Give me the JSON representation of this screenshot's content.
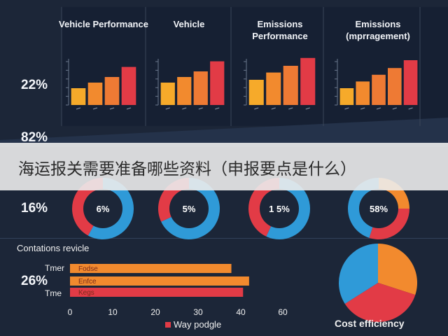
{
  "overlay_title": "海运报关需要准备哪些资料（申报要点是什么）",
  "colors": {
    "background": "#1c2638",
    "yellow": "#f6aa2a",
    "orange": "#f28a2e",
    "orange2": "#ee7a34",
    "red": "#e23b46",
    "blue": "#2f9ad8",
    "grid": "#3a4658"
  },
  "side_percentages": [
    "22%",
    "82%",
    "16%",
    "26%"
  ],
  "chart_data": [
    {
      "type": "bar",
      "title": "Vehicle Performance",
      "values": [
        3,
        4,
        5,
        6.8
      ],
      "colors": [
        "yellow",
        "orange",
        "orange2",
        "red"
      ]
    },
    {
      "type": "bar",
      "title": "Vehicle",
      "values": [
        4,
        5,
        6,
        7.8
      ],
      "colors": [
        "yellow",
        "orange",
        "orange2",
        "red"
      ]
    },
    {
      "type": "bar",
      "title": "Emissions Performance",
      "values": [
        4.5,
        5.8,
        7,
        8.4
      ],
      "colors": [
        "yellow",
        "orange",
        "orange2",
        "red"
      ]
    },
    {
      "type": "bar",
      "title": "Emissions (mprragement)",
      "values": [
        3,
        4.2,
        5.4,
        6.6,
        8
      ],
      "colors": [
        "yellow",
        "orange",
        "orange2",
        "orange2",
        "red"
      ]
    },
    {
      "type": "pie",
      "label": "6%",
      "slices": [
        {
          "color": "blue",
          "value": 58
        },
        {
          "color": "red",
          "value": 42
        }
      ]
    },
    {
      "type": "pie",
      "label": "5%",
      "slices": [
        {
          "color": "blue",
          "value": 68
        },
        {
          "color": "red",
          "value": 32
        }
      ]
    },
    {
      "type": "pie",
      "label": "1 5%",
      "slices": [
        {
          "color": "blue",
          "value": 57
        },
        {
          "color": "red",
          "value": 43
        }
      ]
    },
    {
      "type": "pie",
      "label": "58%",
      "slices": [
        {
          "color": "orange",
          "value": 25
        },
        {
          "color": "red",
          "value": 30
        },
        {
          "color": "blue",
          "value": 45
        }
      ]
    },
    {
      "type": "bar",
      "orientation": "horizontal",
      "title": "Contations revicle",
      "categories": [
        "Tmer",
        "",
        "Tme"
      ],
      "bar_labels": [
        "Fodse",
        "Enfce",
        "Kegs"
      ],
      "values": [
        45.5,
        50.5,
        48.8
      ],
      "colors": [
        "orange",
        "orange",
        "red"
      ],
      "xticks": [
        0,
        10,
        20,
        30,
        40,
        60
      ],
      "xlim": [
        0,
        60
      ],
      "legend": "Way podgle"
    },
    {
      "type": "pie",
      "title": "Cost efficiency",
      "slices": [
        {
          "color": "orange",
          "value": 30
        },
        {
          "color": "red",
          "value": 36
        },
        {
          "color": "blue",
          "value": 34
        }
      ]
    }
  ]
}
